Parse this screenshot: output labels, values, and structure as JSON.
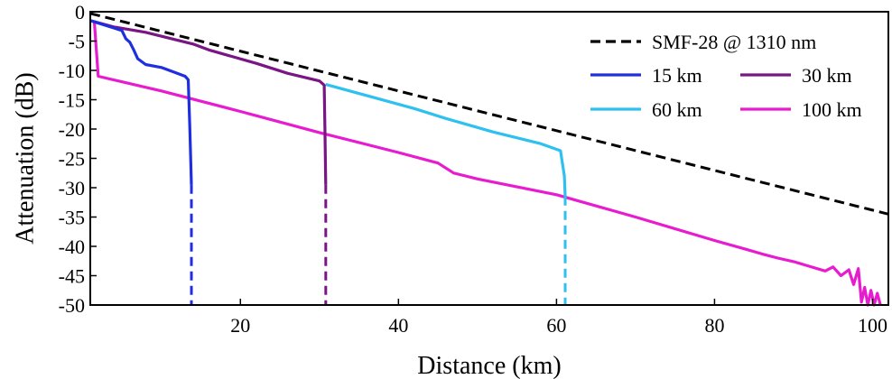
{
  "chart_data": {
    "type": "line",
    "title": "",
    "xlabel": "Distance (km)",
    "ylabel": "Attenuation (dB)",
    "xlim": [
      1,
      102
    ],
    "ylim": [
      -50,
      0
    ],
    "x_ticks": [
      20,
      40,
      60,
      80,
      100
    ],
    "y_ticks": [
      0,
      -5,
      -10,
      -15,
      -20,
      -25,
      -30,
      -35,
      -40,
      -45,
      -50
    ],
    "grid": false,
    "legend_position": "top-right",
    "series": [
      {
        "name": "SMF-28 @ 1310 nm",
        "color": "#000000",
        "style": "dashed",
        "x": [
          1,
          102
        ],
        "y": [
          -0.3,
          -34.5
        ]
      },
      {
        "name": "15 km",
        "color": "#1f2ee0",
        "style": "solid",
        "x": [
          1,
          5.0,
          5.5,
          6.0,
          6.5,
          7.0,
          8.0,
          10.0,
          12.0,
          13.0,
          13.4,
          13.6,
          13.8
        ],
        "y": [
          -1.5,
          -3.2,
          -4.6,
          -5.2,
          -6.5,
          -8.0,
          -9.0,
          -9.5,
          -10.5,
          -11.0,
          -11.6,
          -20.0,
          -29.5
        ],
        "dropout": {
          "x": 13.8,
          "y_from": -29.5,
          "y_to": -50
        }
      },
      {
        "name": "30 km",
        "color": "#7a1585",
        "style": "solid",
        "x": [
          1,
          4.0,
          8.0,
          14.0,
          16.0,
          22.0,
          26.0,
          30.0,
          30.6,
          30.7,
          30.8
        ],
        "y": [
          -1.5,
          -2.6,
          -3.5,
          -5.5,
          -6.5,
          -8.8,
          -10.5,
          -11.8,
          -12.5,
          -20.0,
          -29.5
        ],
        "dropout": {
          "x": 30.8,
          "y_from": -29.5,
          "y_to": -50
        }
      },
      {
        "name": "60 km",
        "color": "#2ec0ef",
        "style": "solid",
        "x": [
          30.8,
          36.0,
          42.0,
          46.0,
          52.0,
          58.0,
          60.5,
          61.0,
          61.1
        ],
        "y": [
          -12.4,
          -14.3,
          -16.5,
          -18.2,
          -20.5,
          -22.5,
          -23.7,
          -28.0,
          -31.5
        ],
        "dropout": {
          "x": 61.1,
          "y_from": -31.5,
          "y_to": -50
        }
      },
      {
        "name": "100 km",
        "color": "#e81ccf",
        "style": "solid",
        "x": [
          1.5,
          2.0,
          10.0,
          20.0,
          30.0,
          40.0,
          45.0,
          47.0,
          50.0,
          60.0,
          70.0,
          80.0,
          84.0,
          86.0,
          88.0,
          90.0,
          92.0,
          94.0,
          95.0,
          96.0,
          97.0,
          97.6,
          98.2,
          98.6,
          99.0,
          99.4,
          99.8,
          100.2,
          100.6,
          101.0
        ],
        "y": [
          -1.5,
          -11.0,
          -13.5,
          -17.0,
          -20.6,
          -24.0,
          -25.8,
          -27.5,
          -28.5,
          -31.2,
          -35.0,
          -39.0,
          -40.5,
          -41.3,
          -42.0,
          -42.6,
          -43.4,
          -44.2,
          -43.5,
          -45.0,
          -44.0,
          -46.5,
          -43.8,
          -49.5,
          -47.0,
          -50.0,
          -47.5,
          -50.0,
          -48.0,
          -50.0
        ]
      }
    ]
  }
}
